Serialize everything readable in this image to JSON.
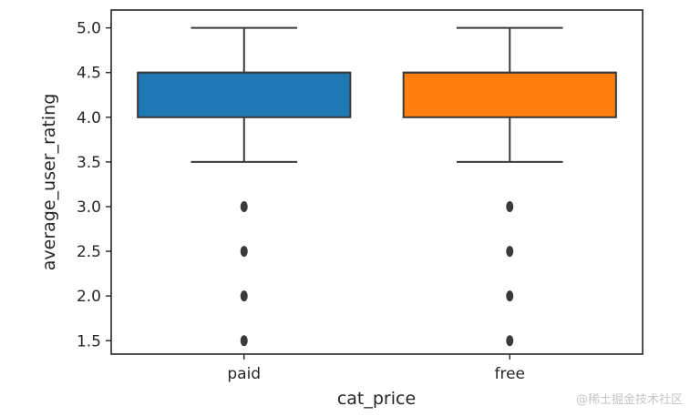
{
  "chart_data": {
    "type": "box",
    "title": "",
    "xlabel": "cat_price",
    "ylabel": "average_user_rating",
    "categories": [
      "paid",
      "free"
    ],
    "ylim": [
      1.35,
      5.2
    ],
    "yticks": [
      "1.5",
      "2.0",
      "2.5",
      "3.0",
      "3.5",
      "4.0",
      "4.5",
      "5.0"
    ],
    "grid": false,
    "legend": "none",
    "series": [
      {
        "category": "paid",
        "color": "#1f77b4",
        "whisker_low": 3.5,
        "q1": 4.0,
        "median": 4.5,
        "q3": 4.5,
        "whisker_high": 5.0,
        "outliers": [
          3.0,
          2.5,
          2.0,
          1.5
        ]
      },
      {
        "category": "free",
        "color": "#ff7f0e",
        "whisker_low": 3.5,
        "q1": 4.0,
        "median": 4.5,
        "q3": 4.5,
        "whisker_high": 5.0,
        "outliers": [
          3.0,
          2.5,
          2.0,
          1.5
        ]
      }
    ]
  },
  "watermark": "@稀土掘金技术社区"
}
